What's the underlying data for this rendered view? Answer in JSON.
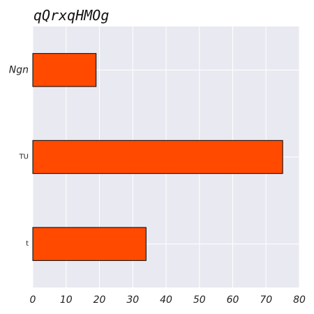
{
  "chart_data": {
    "type": "bar",
    "orientation": "horizontal",
    "title": "qQrxqHMOg",
    "xlabel": "",
    "ylabel": "",
    "categories": [
      "Ngn",
      "TU",
      "t"
    ],
    "values": [
      19,
      75,
      34
    ],
    "xlim": [
      0,
      80
    ],
    "xticks": [
      0,
      10,
      20,
      30,
      40,
      50,
      60,
      70,
      80
    ],
    "grid": true,
    "legend": "none",
    "colors": {
      "bar_fill": "#ff4a00",
      "bar_edge": "#000000",
      "plot_background": "#e9e9f1",
      "grid": "#ffffff"
    }
  }
}
